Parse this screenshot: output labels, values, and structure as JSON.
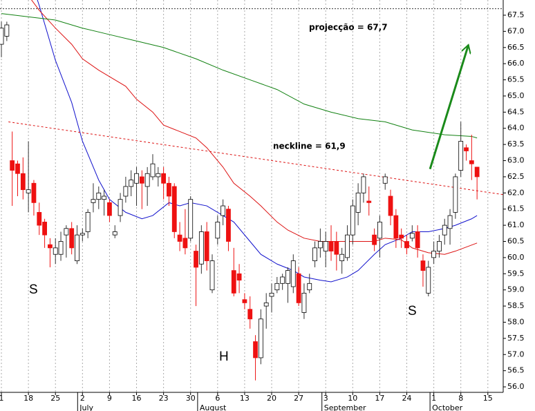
{
  "chart_data": {
    "type": "candlestick",
    "xlim": [
      -0.26,
      92.84
    ],
    "ylim": [
      55.83,
      67.97
    ],
    "xticks": [
      {
        "value": 0,
        "label": "1"
      },
      {
        "value": 5,
        "label": "18"
      },
      {
        "value": 10,
        "label": "25"
      },
      {
        "value": 15,
        "label": "2"
      },
      {
        "value": 20,
        "label": "9"
      },
      {
        "value": 25,
        "label": "16"
      },
      {
        "value": 30,
        "label": "23"
      },
      {
        "value": 35,
        "label": "30"
      },
      {
        "value": 40,
        "label": "6"
      },
      {
        "value": 45,
        "label": "13"
      },
      {
        "value": 50,
        "label": "20"
      },
      {
        "value": 55,
        "label": "27"
      },
      {
        "value": 60,
        "label": "3"
      },
      {
        "value": 65,
        "label": "10"
      },
      {
        "value": 70,
        "label": "17"
      },
      {
        "value": 75,
        "label": "24"
      },
      {
        "value": 80,
        "label": "1"
      },
      {
        "value": 85,
        "label": "8"
      },
      {
        "value": 90,
        "label": "15"
      }
    ],
    "months": [
      {
        "value": 14.1,
        "label": "July"
      },
      {
        "value": 36.3,
        "label": "August"
      },
      {
        "value": 59.3,
        "label": "September"
      },
      {
        "value": 79.3,
        "label": "October"
      }
    ],
    "yticks": [
      {
        "value": 56,
        "label": "56.0"
      },
      56.5,
      {
        "value": 57,
        "label": "57.0"
      },
      57.5,
      {
        "value": 58,
        "label": "58.0"
      },
      58.5,
      {
        "value": 59,
        "label": "59.0"
      },
      59.5,
      {
        "value": 60,
        "label": "60.0"
      },
      60.5,
      {
        "value": 61,
        "label": "61.0"
      },
      61.5,
      {
        "value": 62,
        "label": "62.0"
      },
      62.5,
      {
        "value": 63,
        "label": "63.0"
      },
      63.5,
      {
        "value": 64,
        "label": "64.0"
      },
      64.5,
      {
        "value": 65,
        "label": "65.0"
      },
      65.5,
      {
        "value": 66,
        "label": "66.0"
      },
      66.5,
      {
        "value": 67,
        "label": "67.0"
      },
      67.5
    ],
    "grid": true,
    "up_color": "#ffffff",
    "down_color": "#ee1111",
    "open": [
      66.6,
      66.85,
      63.0,
      62.9,
      62.6,
      62.0,
      62.3,
      61.4,
      61.1,
      60.4,
      60.1,
      60.1,
      60.7,
      60.9,
      59.9,
      60.7,
      60.8,
      61.7,
      61.8,
      61.8,
      61.7,
      60.7,
      61.3,
      61.9,
      62.2,
      62.3,
      62.5,
      62.2,
      62.5,
      62.5,
      62.6,
      62.3,
      62.2,
      60.7,
      60.6,
      60.6,
      60.2,
      59.8,
      60.8,
      59.0,
      60.6,
      61.3,
      61.5,
      59.6,
      59.5,
      58.7,
      58.4,
      57.4,
      56.9,
      58.5,
      58.8,
      59.0,
      59.2,
      59.2,
      59.1,
      59.5,
      58.3,
      59.0,
      59.9,
      60.3,
      60.2,
      60.5,
      60.5,
      59.9,
      60.0,
      60.7,
      61.4,
      62.0,
      61.75,
      60.7,
      60.6,
      62.3,
      61.9,
      61.3,
      60.7,
      60.5,
      60.6,
      60.8,
      59.9,
      58.9,
      60.0,
      60.2,
      60.7,
      60.9,
      61.4,
      62.7,
      63.4,
      63.0,
      62.8
    ],
    "high": [
      67.3,
      67.3,
      63.9,
      63.0,
      63.1,
      63.6,
      62.4,
      61.7,
      61.2,
      60.6,
      60.6,
      60.8,
      61.0,
      61.1,
      61.0,
      60.9,
      61.5,
      62.3,
      62.2,
      62.1,
      61.8,
      61.0,
      62.0,
      62.5,
      62.7,
      62.8,
      62.7,
      62.8,
      63.2,
      62.8,
      62.8,
      62.5,
      62.3,
      61.1,
      61.5,
      61.9,
      60.4,
      61.0,
      61.1,
      60.1,
      61.3,
      61.8,
      61.6,
      60.3,
      59.8,
      58.9,
      58.8,
      57.6,
      58.4,
      58.9,
      59.2,
      59.4,
      59.5,
      59.7,
      60.1,
      59.7,
      59.2,
      59.5,
      60.5,
      60.9,
      60.8,
      61.0,
      60.8,
      60.3,
      61.0,
      61.8,
      62.3,
      62.6,
      62.2,
      60.9,
      61.3,
      62.6,
      62.1,
      61.5,
      60.9,
      60.7,
      61.0,
      61.0,
      60.1,
      59.9,
      60.5,
      60.7,
      61.2,
      61.5,
      62.6,
      64.2,
      63.5,
      63.8,
      62.8
    ],
    "low": [
      66.2,
      66.7,
      61.6,
      61.9,
      61.8,
      61.4,
      61.3,
      60.7,
      60.3,
      59.7,
      59.8,
      59.9,
      60.0,
      60.1,
      59.8,
      60.5,
      60.6,
      61.4,
      61.5,
      61.3,
      61.1,
      60.6,
      61.1,
      61.7,
      61.9,
      61.6,
      61.5,
      61.6,
      62.4,
      62.2,
      61.8,
      61.6,
      60.6,
      60.2,
      60.1,
      60.5,
      58.5,
      59.5,
      59.6,
      58.9,
      60.4,
      61.0,
      60.2,
      58.8,
      58.9,
      58.4,
      57.8,
      56.2,
      56.7,
      57.8,
      58.3,
      58.9,
      59.0,
      58.6,
      58.9,
      58.5,
      58.1,
      58.9,
      59.7,
      60.0,
      59.7,
      59.9,
      59.6,
      59.5,
      59.9,
      60.4,
      61.0,
      61.7,
      61.3,
      60.2,
      60.0,
      62.1,
      61.0,
      60.3,
      60.3,
      60.1,
      60.5,
      60.0,
      59.1,
      58.8,
      59.8,
      60.0,
      60.4,
      60.4,
      61.2,
      62.5,
      63.0,
      62.4,
      61.8
    ],
    "close": [
      67.1,
      67.2,
      62.7,
      62.6,
      62.1,
      62.1,
      61.7,
      61.0,
      60.7,
      60.3,
      60.3,
      60.5,
      60.9,
      60.3,
      60.7,
      60.75,
      61.4,
      61.8,
      62.0,
      61.9,
      61.3,
      60.8,
      61.8,
      62.2,
      62.4,
      62.6,
      62.3,
      62.6,
      62.9,
      62.6,
      62.3,
      61.9,
      60.8,
      60.5,
      60.3,
      61.8,
      59.7,
      60.8,
      59.9,
      59.9,
      61.1,
      61.6,
      60.5,
      58.9,
      59.3,
      58.6,
      58.1,
      56.9,
      58.1,
      58.6,
      58.9,
      59.2,
      59.4,
      59.6,
      59.9,
      58.6,
      58.9,
      59.2,
      60.3,
      60.5,
      60.5,
      60.2,
      60.1,
      60.1,
      60.7,
      61.6,
      62.0,
      62.5,
      61.7,
      60.4,
      61.1,
      62.5,
      61.3,
      60.6,
      60.6,
      60.3,
      60.75,
      60.3,
      59.6,
      59.7,
      60.2,
      60.5,
      61.0,
      61.3,
      62.5,
      63.6,
      63.3,
      62.9,
      62.5
    ],
    "series": [
      {
        "color": "#1010cc",
        "x": [
          6,
          7,
          10,
          13,
          15,
          18,
          20,
          23,
          26,
          28,
          31,
          33,
          35,
          38,
          41,
          43,
          46,
          48,
          51,
          54,
          56,
          59,
          61,
          64,
          66,
          69,
          71,
          74,
          76,
          79,
          82,
          84,
          87,
          88
        ],
        "values": [
          68.3,
          67.8,
          66.1,
          64.8,
          63.6,
          62.4,
          61.8,
          61.4,
          61.2,
          61.3,
          61.7,
          61.6,
          61.7,
          61.6,
          61.3,
          61.1,
          60.5,
          60.1,
          59.8,
          59.6,
          59.4,
          59.3,
          59.25,
          59.4,
          59.6,
          60.1,
          60.4,
          60.6,
          60.8,
          60.8,
          60.9,
          61.0,
          61.2,
          61.3
        ]
      },
      {
        "color": "#dd1111",
        "x": [
          5,
          7,
          10,
          13,
          15,
          18,
          20,
          23,
          25,
          28,
          30,
          33,
          36,
          38,
          41,
          43,
          46,
          48,
          51,
          53,
          56,
          59,
          64,
          69,
          71,
          74,
          76,
          79,
          82,
          84,
          88
        ],
        "values": [
          68.1,
          67.65,
          67.1,
          66.6,
          66.15,
          65.8,
          65.6,
          65.3,
          64.9,
          64.5,
          64.1,
          63.9,
          63.7,
          63.4,
          62.8,
          62.3,
          61.9,
          61.6,
          61.1,
          60.85,
          60.6,
          60.5,
          60.5,
          60.5,
          60.6,
          60.55,
          60.3,
          60.15,
          60.1,
          60.2,
          60.45
        ]
      },
      {
        "color": "#108010",
        "x": [
          0,
          5,
          10,
          15,
          20,
          25,
          30,
          36,
          41,
          46,
          51,
          56,
          61,
          66,
          71,
          76,
          82,
          87,
          88
        ],
        "values": [
          67.55,
          67.45,
          67.35,
          67.1,
          66.9,
          66.7,
          66.5,
          66.15,
          65.8,
          65.5,
          65.2,
          64.75,
          64.5,
          64.3,
          64.2,
          63.95,
          63.8,
          63.75,
          63.7
        ]
      }
    ],
    "projection": {
      "label": "projecção = 67,7",
      "value": 67.7
    },
    "neckline": {
      "label": "neckline = 61,9",
      "x": [
        1.3,
        92.8
      ],
      "values": [
        64.2,
        61.95
      ],
      "color": "#dd1111"
    },
    "arrow": {
      "x": [
        79.3,
        86.4
      ],
      "values": [
        62.74,
        66.58
      ],
      "color": "#1a8a1a"
    },
    "pattern_labels": [
      "S",
      "H",
      "S"
    ]
  }
}
